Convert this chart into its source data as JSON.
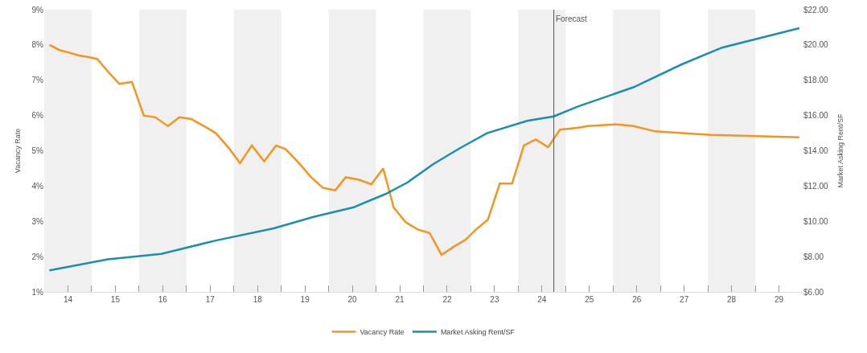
{
  "chart_data": {
    "type": "line",
    "ylabel": "Vacancy Rate",
    "y2label": "Market Asking Rent/SF",
    "series": [
      {
        "name": "Vacancy Rate",
        "color": "#f7941d",
        "x": [
          13.61,
          13.83,
          13.98,
          14.23,
          14.46,
          14.62,
          14.84,
          15.08,
          15.35,
          15.6,
          15.84,
          16.11,
          16.35,
          16.6,
          16.87,
          17.12,
          17.38,
          17.63,
          17.88,
          18.14,
          18.39,
          18.59,
          18.84,
          19.13,
          19.38,
          19.64,
          19.86,
          20.14,
          20.4,
          20.65,
          20.87,
          21.12,
          21.38,
          21.63,
          21.88,
          22.14,
          22.39,
          22.61,
          22.86,
          23.11,
          23.37,
          23.62,
          23.87,
          24.13,
          24.38,
          24.75,
          24.97,
          25.54,
          25.93,
          26.39,
          26.95,
          27.57,
          28.35,
          29.43
        ],
        "values": [
          8.0,
          7.85,
          7.8,
          7.7,
          7.65,
          7.6,
          7.25,
          6.9,
          6.95,
          6.0,
          5.95,
          5.7,
          5.95,
          5.9,
          5.7,
          5.5,
          5.1,
          4.65,
          5.15,
          4.7,
          5.15,
          5.05,
          4.7,
          4.25,
          3.95,
          3.88,
          4.25,
          4.18,
          4.05,
          4.5,
          3.4,
          2.98,
          2.77,
          2.67,
          2.05,
          2.28,
          2.48,
          2.77,
          3.05,
          4.07,
          4.07,
          5.15,
          5.32,
          5.1,
          5.6,
          5.65,
          5.7,
          5.75,
          5.7,
          5.55,
          5.5,
          5.45,
          5.42,
          5.38
        ]
      },
      {
        "name": "Market Asking Rent/SF",
        "color": "#1a8fae",
        "axis": "y2",
        "x": [
          13.61,
          14.84,
          15.97,
          17.1,
          18.34,
          19.18,
          20.03,
          20.7,
          21.16,
          21.71,
          22.27,
          22.84,
          23.69,
          24.25,
          24.75,
          25.93,
          26.95,
          27.8,
          29.43
        ],
        "values": [
          7.22,
          7.85,
          8.15,
          8.9,
          9.6,
          10.25,
          10.8,
          11.55,
          12.2,
          13.25,
          14.15,
          15.0,
          15.7,
          15.95,
          16.5,
          17.6,
          18.9,
          19.85,
          20.95
        ]
      }
    ],
    "xlim": [
      13.5,
      29.5
    ],
    "xticks": [
      14,
      {
        "value": 14.5,
        "label": null
      },
      15,
      {
        "value": 15.5,
        "label": null
      },
      16,
      {
        "value": 16.5,
        "label": null
      },
      17,
      {
        "value": 17.5,
        "label": null
      },
      18,
      {
        "value": 18.5,
        "label": null
      },
      19,
      {
        "value": 19.5,
        "label": null
      },
      20,
      {
        "value": 20.5,
        "label": null
      },
      21,
      {
        "value": 21.5,
        "label": null
      },
      22,
      {
        "value": 22.5,
        "label": null
      },
      23,
      {
        "value": 23.5,
        "label": null
      },
      24,
      {
        "value": 24.5,
        "label": null
      },
      25,
      {
        "value": 25.5,
        "label": null
      },
      26,
      {
        "value": 26.5,
        "label": null
      },
      27,
      {
        "value": 27.5,
        "label": null
      },
      28,
      {
        "value": 28.5,
        "label": null
      },
      29
    ],
    "ylim": [
      1,
      9
    ],
    "yticks": [
      {
        "value": 1,
        "label": "1%"
      },
      {
        "value": 2,
        "label": "2%"
      },
      {
        "value": 3,
        "label": "3%"
      },
      {
        "value": 4,
        "label": "4%"
      },
      {
        "value": 5,
        "label": "5%"
      },
      {
        "value": 6,
        "label": "6%"
      },
      {
        "value": 7,
        "label": "7%"
      },
      {
        "value": 8,
        "label": "8%"
      },
      {
        "value": 9,
        "label": "9%"
      }
    ],
    "y2lim": [
      6,
      22
    ],
    "y2ticks": [
      {
        "value": 6,
        "label": "$6.00"
      },
      {
        "value": 8,
        "label": "$8.00"
      },
      {
        "value": 10,
        "label": "$10.00"
      },
      {
        "value": 12,
        "label": "$12.00"
      },
      {
        "value": 14,
        "label": "$14.00"
      },
      {
        "value": 16,
        "label": "$16.00"
      },
      {
        "value": 18,
        "label": "$18.00"
      },
      {
        "value": 20,
        "label": "$20.00"
      },
      {
        "value": 22,
        "label": "$22.00"
      }
    ],
    "ref_lines": [
      {
        "axis": "x",
        "value": 24.25,
        "label": "Forecast",
        "color": "#555555"
      }
    ],
    "bands": [
      {
        "axis": "x",
        "from": 13.5,
        "to": 14.5,
        "color": "#f0f0f0"
      },
      {
        "axis": "x",
        "from": 15.5,
        "to": 16.5,
        "color": "#f0f0f0"
      },
      {
        "axis": "x",
        "from": 17.5,
        "to": 18.5,
        "color": "#f0f0f0"
      },
      {
        "axis": "x",
        "from": 19.5,
        "to": 20.5,
        "color": "#f0f0f0"
      },
      {
        "axis": "x",
        "from": 21.5,
        "to": 22.5,
        "color": "#f0f0f0"
      },
      {
        "axis": "x",
        "from": 23.5,
        "to": 24.5,
        "color": "#f0f0f0"
      },
      {
        "axis": "x",
        "from": 25.5,
        "to": 26.5,
        "color": "#f0f0f0"
      },
      {
        "axis": "x",
        "from": 27.5,
        "to": 28.5,
        "color": "#f0f0f0"
      }
    ],
    "grid": false,
    "legend": "bottom",
    "marker": "none",
    "line_style": "solid"
  }
}
